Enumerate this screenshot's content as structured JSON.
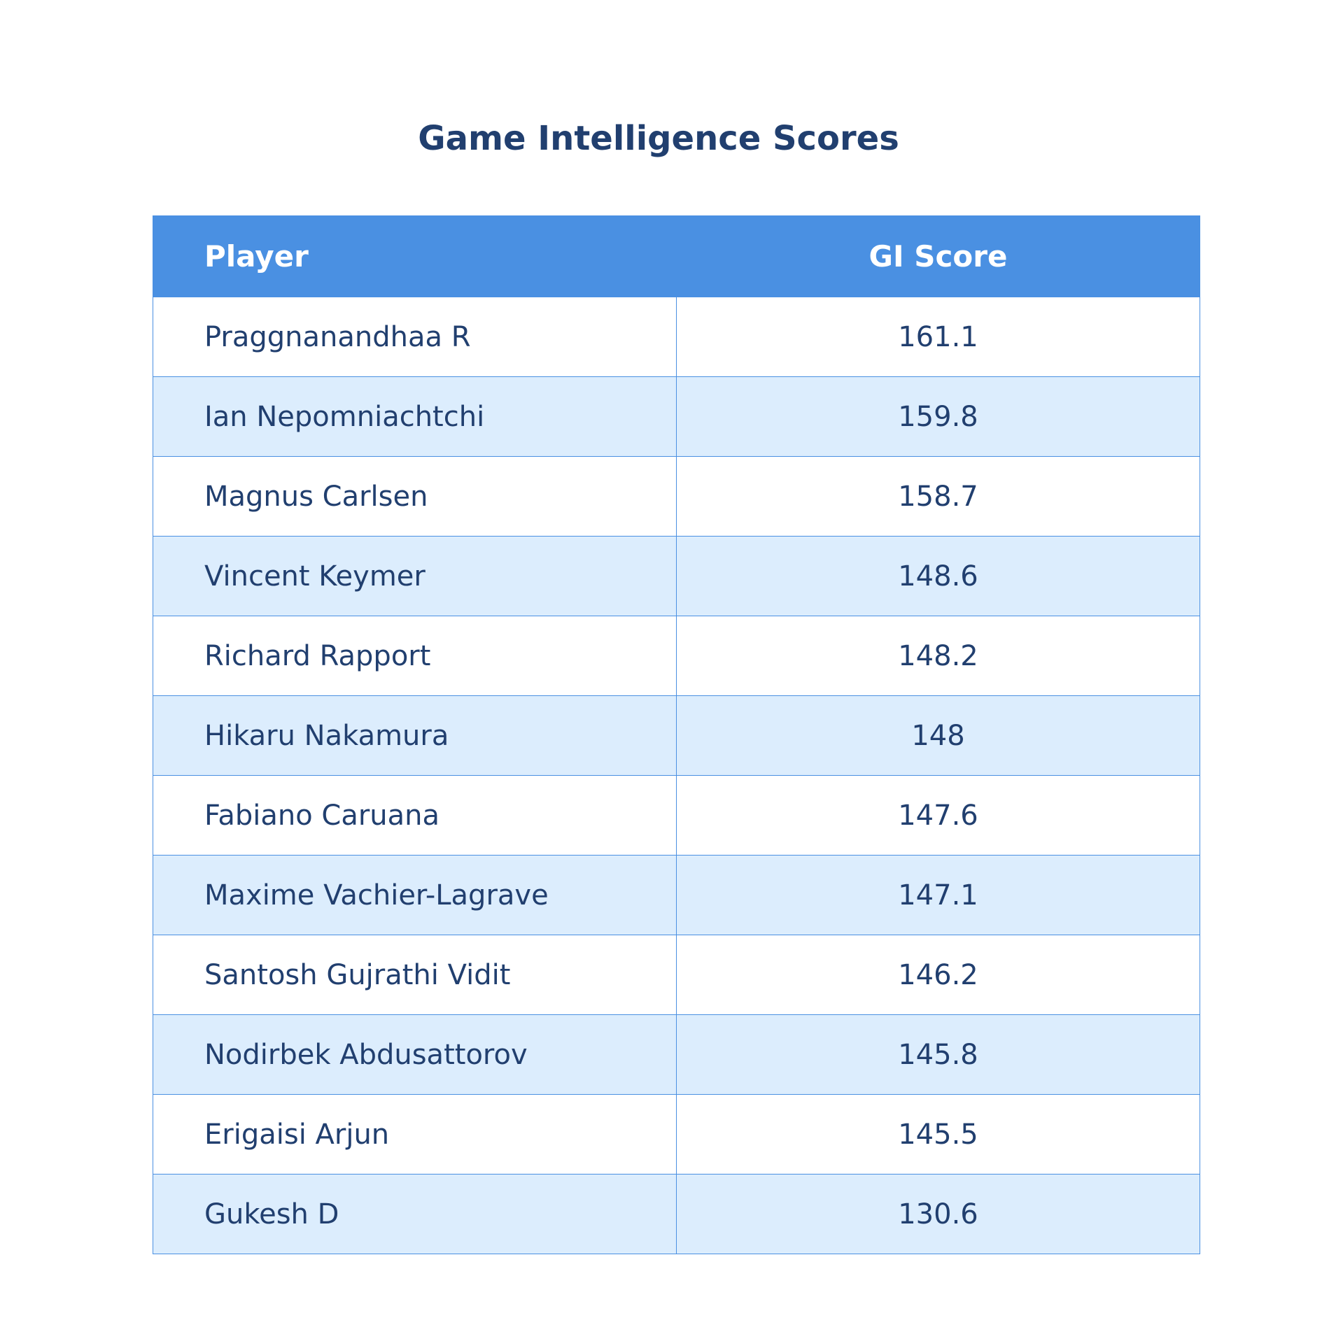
{
  "chart_data": {
    "type": "table",
    "title": "Game Intelligence Scores",
    "columns": [
      "Player",
      "GI Score"
    ],
    "rows": [
      {
        "player": "Praggnanandhaa R",
        "score": "161.1"
      },
      {
        "player": "Ian Nepomniachtchi",
        "score": "159.8"
      },
      {
        "player": "Magnus Carlsen",
        "score": "158.7"
      },
      {
        "player": "Vincent Keymer",
        "score": "148.6"
      },
      {
        "player": "Richard Rapport",
        "score": "148.2"
      },
      {
        "player": "Hikaru Nakamura",
        "score": "148"
      },
      {
        "player": "Fabiano Caruana",
        "score": "147.6"
      },
      {
        "player": "Maxime Vachier-Lagrave",
        "score": "147.1"
      },
      {
        "player": "Santosh Gujrathi Vidit",
        "score": "146.2"
      },
      {
        "player": "Nodirbek Abdusattorov",
        "score": "145.8"
      },
      {
        "player": "Erigaisi Arjun",
        "score": "145.5"
      },
      {
        "player": "Gukesh D",
        "score": "130.6"
      }
    ]
  },
  "colors": {
    "header_bg": "#4a90e2",
    "header_text": "#ffffff",
    "row_alt_bg": "#dcedfd",
    "text": "#213f6f",
    "border": "#4a90e2"
  }
}
